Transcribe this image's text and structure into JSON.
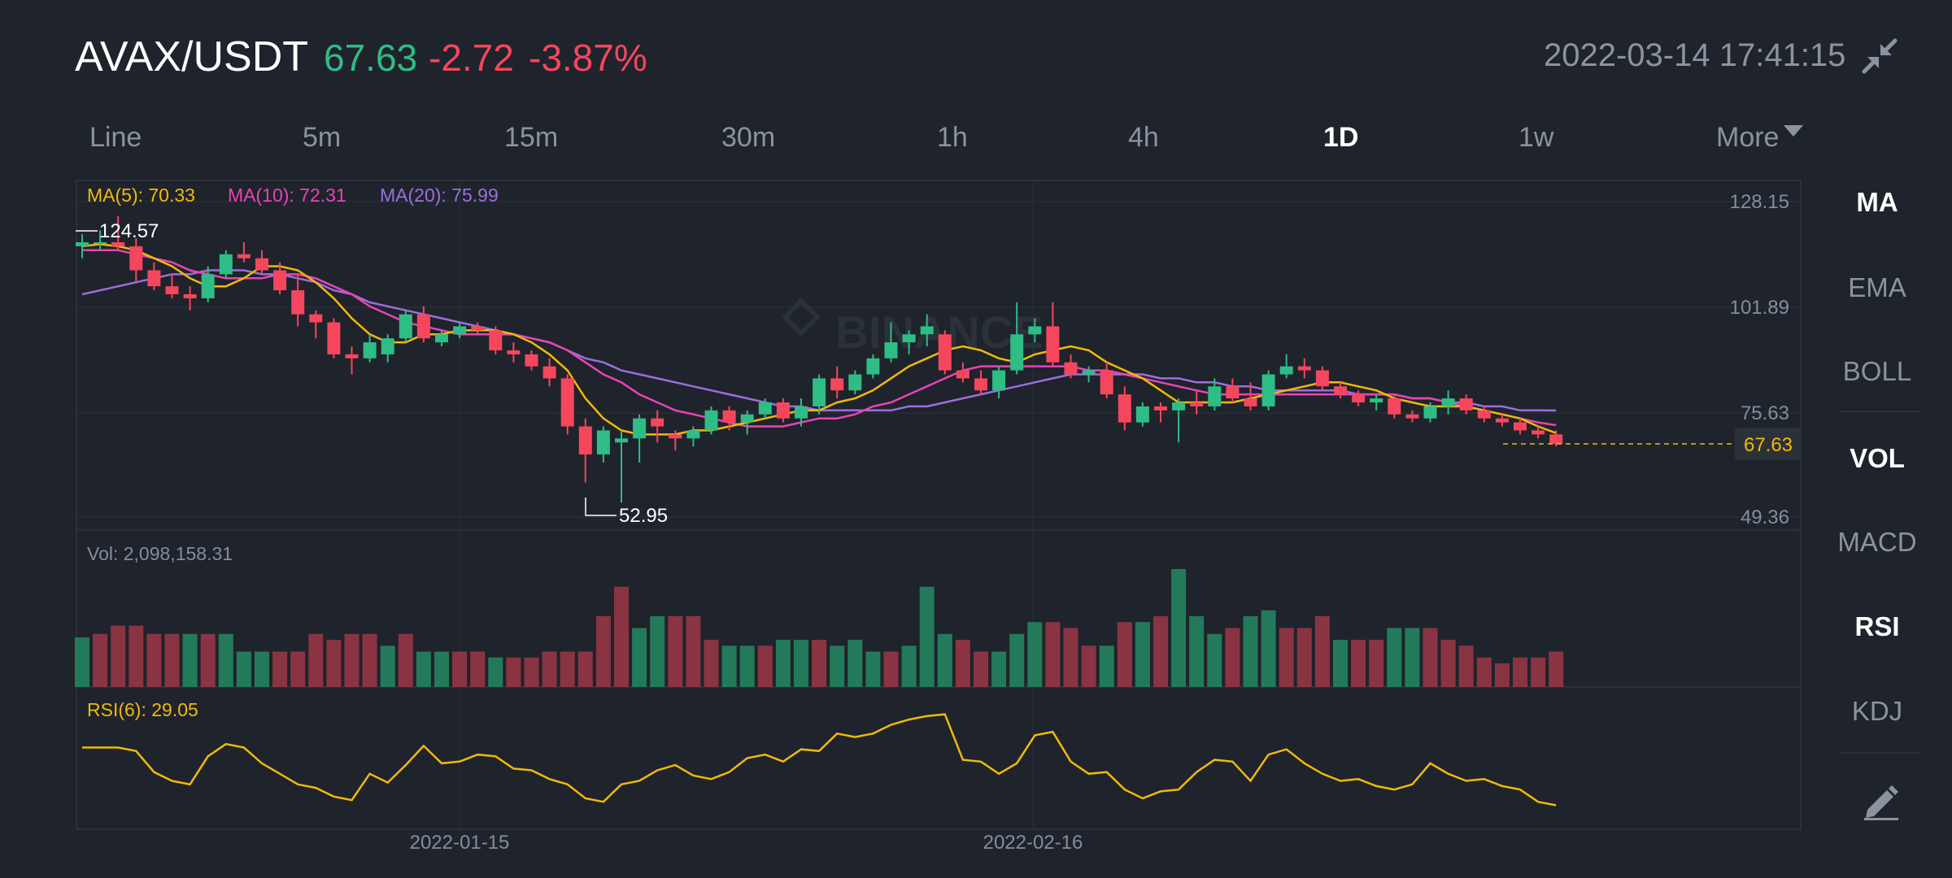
{
  "header": {
    "pair": "AVAX/USDT",
    "price": "67.63",
    "change": "-2.72",
    "change_pct": "-3.87%",
    "datetime": "2022-03-14 17:41:15",
    "collapse_icon": "collapse-arrows-icon"
  },
  "timeframes": [
    "Line",
    "5m",
    "15m",
    "30m",
    "1h",
    "4h",
    "1D",
    "1w",
    "More"
  ],
  "active_timeframe": "1D",
  "indicators": [
    "MA",
    "EMA",
    "BOLL",
    "VOL",
    "MACD",
    "RSI",
    "KDJ"
  ],
  "active_indicators": [
    "MA",
    "VOL",
    "RSI"
  ],
  "draw_tool_icon": "pencil-draw-icon",
  "watermark": "BINANCE",
  "colors": {
    "up": "#2ebd85",
    "down": "#f6465d",
    "ma5": "#f0b90b",
    "ma10": "#e844b5",
    "ma20": "#9c6ede",
    "rsi": "#f0b90b",
    "bg": "#1f232b",
    "grid": "#2b3139"
  },
  "chart_data": {
    "type": "candlestick",
    "interval": "1D",
    "legend": {
      "ma5": "MA(5): 70.33",
      "ma10": "MA(10): 72.31",
      "ma20": "MA(20): 75.99",
      "vol": "Vol: 2,098,158.31",
      "rsi": "RSI(6): 29.05"
    },
    "price_ticks": [
      "128.15",
      "101.89",
      "75.63",
      "49.36"
    ],
    "price_range": [
      49.36,
      128.15
    ],
    "last_price_label": "67.63",
    "high_marker": "124.57",
    "low_marker": "52.95",
    "x_tick_labels": [
      "2022-01-15",
      "2022-02-16"
    ],
    "candles": [
      {
        "o": 117,
        "h": 120,
        "l": 114,
        "c": 118
      },
      {
        "o": 118,
        "h": 121,
        "l": 116,
        "c": 118
      },
      {
        "o": 118,
        "h": 124.57,
        "l": 116,
        "c": 117
      },
      {
        "o": 117,
        "h": 119,
        "l": 108,
        "c": 111
      },
      {
        "o": 111,
        "h": 113,
        "l": 106,
        "c": 107
      },
      {
        "o": 107,
        "h": 110,
        "l": 104,
        "c": 105
      },
      {
        "o": 105,
        "h": 107,
        "l": 101,
        "c": 104
      },
      {
        "o": 104,
        "h": 112,
        "l": 103,
        "c": 110
      },
      {
        "o": 110,
        "h": 116,
        "l": 109,
        "c": 115
      },
      {
        "o": 115,
        "h": 118,
        "l": 113,
        "c": 114
      },
      {
        "o": 114,
        "h": 116,
        "l": 110,
        "c": 111
      },
      {
        "o": 111,
        "h": 113,
        "l": 105,
        "c": 106
      },
      {
        "o": 106,
        "h": 110,
        "l": 97,
        "c": 100
      },
      {
        "o": 100,
        "h": 101,
        "l": 94,
        "c": 98
      },
      {
        "o": 98,
        "h": 99,
        "l": 89,
        "c": 90
      },
      {
        "o": 90,
        "h": 92,
        "l": 85,
        "c": 89
      },
      {
        "o": 89,
        "h": 95,
        "l": 88,
        "c": 93
      },
      {
        "o": 90,
        "h": 95,
        "l": 88,
        "c": 94
      },
      {
        "o": 94,
        "h": 101,
        "l": 93,
        "c": 100
      },
      {
        "o": 100,
        "h": 102,
        "l": 93,
        "c": 94
      },
      {
        "o": 93,
        "h": 96,
        "l": 92,
        "c": 95
      },
      {
        "o": 95,
        "h": 98,
        "l": 94,
        "c": 97
      },
      {
        "o": 97,
        "h": 98,
        "l": 95,
        "c": 96
      },
      {
        "o": 96,
        "h": 97,
        "l": 90,
        "c": 91
      },
      {
        "o": 91,
        "h": 93,
        "l": 88,
        "c": 90
      },
      {
        "o": 90,
        "h": 91,
        "l": 86,
        "c": 87
      },
      {
        "o": 87,
        "h": 89,
        "l": 82,
        "c": 84
      },
      {
        "o": 84,
        "h": 85,
        "l": 70,
        "c": 72
      },
      {
        "o": 72,
        "h": 74,
        "l": 58,
        "c": 65
      },
      {
        "o": 65,
        "h": 72,
        "l": 63,
        "c": 71
      },
      {
        "o": 68,
        "h": 71,
        "l": 52.95,
        "c": 69
      },
      {
        "o": 69,
        "h": 75,
        "l": 63,
        "c": 74
      },
      {
        "o": 74,
        "h": 76,
        "l": 68,
        "c": 72
      },
      {
        "o": 70,
        "h": 71,
        "l": 66,
        "c": 69
      },
      {
        "o": 69,
        "h": 72,
        "l": 67,
        "c": 71
      },
      {
        "o": 71,
        "h": 77,
        "l": 70,
        "c": 76
      },
      {
        "o": 76,
        "h": 77,
        "l": 71,
        "c": 73
      },
      {
        "o": 73,
        "h": 76,
        "l": 70,
        "c": 75
      },
      {
        "o": 75,
        "h": 79,
        "l": 74,
        "c": 78
      },
      {
        "o": 78,
        "h": 79,
        "l": 73,
        "c": 74
      },
      {
        "o": 74,
        "h": 79,
        "l": 72,
        "c": 77
      },
      {
        "o": 77,
        "h": 85,
        "l": 75,
        "c": 84
      },
      {
        "o": 84,
        "h": 87,
        "l": 79,
        "c": 81
      },
      {
        "o": 81,
        "h": 86,
        "l": 80,
        "c": 85
      },
      {
        "o": 85,
        "h": 90,
        "l": 84,
        "c": 89
      },
      {
        "o": 89,
        "h": 98,
        "l": 88,
        "c": 93
      },
      {
        "o": 93,
        "h": 96,
        "l": 90,
        "c": 95
      },
      {
        "o": 95,
        "h": 100,
        "l": 92,
        "c": 97
      },
      {
        "o": 95,
        "h": 96,
        "l": 85,
        "c": 86
      },
      {
        "o": 86,
        "h": 88,
        "l": 83,
        "c": 84
      },
      {
        "o": 84,
        "h": 86,
        "l": 80,
        "c": 81
      },
      {
        "o": 81,
        "h": 87,
        "l": 79,
        "c": 86
      },
      {
        "o": 86,
        "h": 103,
        "l": 85,
        "c": 95
      },
      {
        "o": 95,
        "h": 99,
        "l": 93,
        "c": 97
      },
      {
        "o": 97,
        "h": 103,
        "l": 87,
        "c": 88
      },
      {
        "o": 88,
        "h": 90,
        "l": 84,
        "c": 85
      },
      {
        "o": 85,
        "h": 87,
        "l": 83,
        "c": 86
      },
      {
        "o": 86,
        "h": 88,
        "l": 79,
        "c": 80
      },
      {
        "o": 80,
        "h": 82,
        "l": 71,
        "c": 73
      },
      {
        "o": 73,
        "h": 78,
        "l": 72,
        "c": 77
      },
      {
        "o": 77,
        "h": 78,
        "l": 73,
        "c": 76
      },
      {
        "o": 76,
        "h": 79,
        "l": 68,
        "c": 78
      },
      {
        "o": 78,
        "h": 81,
        "l": 75,
        "c": 77
      },
      {
        "o": 77,
        "h": 84,
        "l": 76,
        "c": 82
      },
      {
        "o": 82,
        "h": 84,
        "l": 78,
        "c": 79
      },
      {
        "o": 79,
        "h": 83,
        "l": 76,
        "c": 77
      },
      {
        "o": 77,
        "h": 86,
        "l": 76,
        "c": 85
      },
      {
        "o": 85,
        "h": 90,
        "l": 84,
        "c": 87
      },
      {
        "o": 87,
        "h": 89,
        "l": 84,
        "c": 86
      },
      {
        "o": 86,
        "h": 87,
        "l": 81,
        "c": 82
      },
      {
        "o": 82,
        "h": 83,
        "l": 79,
        "c": 80
      },
      {
        "o": 80,
        "h": 81,
        "l": 77,
        "c": 78
      },
      {
        "o": 78,
        "h": 80,
        "l": 76,
        "c": 79
      },
      {
        "o": 79,
        "h": 80,
        "l": 74,
        "c": 75
      },
      {
        "o": 75,
        "h": 76,
        "l": 73,
        "c": 74
      },
      {
        "o": 74,
        "h": 78,
        "l": 73,
        "c": 77
      },
      {
        "o": 77,
        "h": 81,
        "l": 75,
        "c": 79
      },
      {
        "o": 79,
        "h": 80,
        "l": 75,
        "c": 76
      },
      {
        "o": 76,
        "h": 77,
        "l": 73,
        "c": 74
      },
      {
        "o": 74,
        "h": 75,
        "l": 72,
        "c": 73
      },
      {
        "o": 73,
        "h": 74,
        "l": 70,
        "c": 71
      },
      {
        "o": 71,
        "h": 72,
        "l": 69,
        "c": 70
      },
      {
        "o": 70,
        "h": 71,
        "l": 67,
        "c": 67.63
      }
    ],
    "ma5": [
      117,
      117.5,
      117,
      116,
      114,
      112,
      109,
      107,
      107,
      109,
      112,
      112,
      111,
      108,
      104,
      99,
      95,
      93,
      93,
      95,
      95,
      96,
      96,
      96,
      95,
      93,
      90,
      86,
      79,
      74,
      71,
      70,
      70,
      70,
      71,
      71,
      72,
      73,
      74,
      75,
      76,
      76,
      78,
      79,
      81,
      84,
      87,
      89,
      91,
      92,
      91,
      89,
      88,
      90,
      91,
      92,
      91,
      88,
      86,
      84,
      81,
      78,
      78,
      78,
      78,
      79,
      80,
      81,
      82,
      83,
      83,
      82,
      81,
      79,
      78,
      77,
      77,
      77,
      76,
      75,
      74,
      72,
      70.33
    ],
    "ma10": [
      116,
      116,
      116,
      115,
      114,
      113,
      111,
      110,
      109,
      109,
      109,
      110,
      110,
      109,
      107,
      105,
      102,
      100,
      98,
      97,
      96,
      95,
      95,
      95,
      95,
      94,
      93,
      91,
      88,
      85,
      83,
      80,
      78,
      76,
      75,
      74,
      73,
      72,
      72,
      72,
      73,
      74,
      74,
      75,
      77,
      78,
      80,
      82,
      84,
      86,
      87,
      87,
      87,
      87,
      87,
      87,
      86,
      86,
      85,
      84,
      83,
      82,
      81,
      80,
      80,
      80,
      80,
      80,
      80,
      80,
      80,
      80,
      80,
      80,
      79,
      79,
      78,
      77,
      76,
      75,
      74,
      73,
      72.31
    ],
    "ma20": [
      105,
      106,
      107,
      108,
      109,
      110,
      110,
      111,
      111,
      111,
      110,
      110,
      109,
      108,
      106,
      105,
      103,
      102,
      101,
      100,
      99,
      98,
      97,
      96,
      95,
      94,
      93,
      91,
      89,
      88,
      86,
      85,
      84,
      83,
      82,
      81,
      80,
      79,
      78,
      77,
      77,
      76,
      76,
      76,
      76,
      76,
      77,
      77,
      78,
      79,
      80,
      81,
      82,
      83,
      84,
      85,
      85,
      85,
      85,
      85,
      84,
      84,
      83,
      83,
      82,
      82,
      81,
      81,
      81,
      81,
      81,
      80,
      80,
      80,
      79,
      79,
      78,
      78,
      77,
      77,
      76,
      76,
      75.99
    ],
    "volume": [
      {
        "v": 0.42,
        "d": 0
      },
      {
        "v": 0.45,
        "d": 1
      },
      {
        "v": 0.52,
        "d": 1
      },
      {
        "v": 0.52,
        "d": 1
      },
      {
        "v": 0.45,
        "d": 1
      },
      {
        "v": 0.45,
        "d": 1
      },
      {
        "v": 0.45,
        "d": 0
      },
      {
        "v": 0.45,
        "d": 1
      },
      {
        "v": 0.45,
        "d": 0
      },
      {
        "v": 0.3,
        "d": 0
      },
      {
        "v": 0.3,
        "d": 0
      },
      {
        "v": 0.3,
        "d": 1
      },
      {
        "v": 0.3,
        "d": 1
      },
      {
        "v": 0.45,
        "d": 1
      },
      {
        "v": 0.4,
        "d": 1
      },
      {
        "v": 0.45,
        "d": 1
      },
      {
        "v": 0.45,
        "d": 1
      },
      {
        "v": 0.35,
        "d": 0
      },
      {
        "v": 0.45,
        "d": 1
      },
      {
        "v": 0.3,
        "d": 0
      },
      {
        "v": 0.3,
        "d": 0
      },
      {
        "v": 0.3,
        "d": 1
      },
      {
        "v": 0.3,
        "d": 1
      },
      {
        "v": 0.25,
        "d": 0
      },
      {
        "v": 0.25,
        "d": 1
      },
      {
        "v": 0.25,
        "d": 1
      },
      {
        "v": 0.3,
        "d": 1
      },
      {
        "v": 0.3,
        "d": 1
      },
      {
        "v": 0.3,
        "d": 1
      },
      {
        "v": 0.6,
        "d": 1
      },
      {
        "v": 0.85,
        "d": 1
      },
      {
        "v": 0.5,
        "d": 0
      },
      {
        "v": 0.6,
        "d": 0
      },
      {
        "v": 0.6,
        "d": 1
      },
      {
        "v": 0.6,
        "d": 1
      },
      {
        "v": 0.4,
        "d": 1
      },
      {
        "v": 0.35,
        "d": 0
      },
      {
        "v": 0.35,
        "d": 0
      },
      {
        "v": 0.35,
        "d": 1
      },
      {
        "v": 0.4,
        "d": 0
      },
      {
        "v": 0.4,
        "d": 0
      },
      {
        "v": 0.4,
        "d": 1
      },
      {
        "v": 0.35,
        "d": 0
      },
      {
        "v": 0.4,
        "d": 0
      },
      {
        "v": 0.3,
        "d": 0
      },
      {
        "v": 0.3,
        "d": 1
      },
      {
        "v": 0.35,
        "d": 0
      },
      {
        "v": 0.85,
        "d": 0
      },
      {
        "v": 0.45,
        "d": 0
      },
      {
        "v": 0.4,
        "d": 1
      },
      {
        "v": 0.3,
        "d": 1
      },
      {
        "v": 0.3,
        "d": 0
      },
      {
        "v": 0.45,
        "d": 0
      },
      {
        "v": 0.55,
        "d": 0
      },
      {
        "v": 0.55,
        "d": 1
      },
      {
        "v": 0.5,
        "d": 1
      },
      {
        "v": 0.35,
        "d": 1
      },
      {
        "v": 0.35,
        "d": 0
      },
      {
        "v": 0.55,
        "d": 1
      },
      {
        "v": 0.55,
        "d": 0
      },
      {
        "v": 0.6,
        "d": 1
      },
      {
        "v": 1.0,
        "d": 0
      },
      {
        "v": 0.6,
        "d": 0
      },
      {
        "v": 0.45,
        "d": 0
      },
      {
        "v": 0.5,
        "d": 1
      },
      {
        "v": 0.6,
        "d": 0
      },
      {
        "v": 0.65,
        "d": 0
      },
      {
        "v": 0.5,
        "d": 1
      },
      {
        "v": 0.5,
        "d": 1
      },
      {
        "v": 0.6,
        "d": 1
      },
      {
        "v": 0.4,
        "d": 0
      },
      {
        "v": 0.4,
        "d": 1
      },
      {
        "v": 0.4,
        "d": 1
      },
      {
        "v": 0.5,
        "d": 0
      },
      {
        "v": 0.5,
        "d": 0
      },
      {
        "v": 0.5,
        "d": 1
      },
      {
        "v": 0.4,
        "d": 1
      },
      {
        "v": 0.35,
        "d": 1
      },
      {
        "v": 0.25,
        "d": 1
      },
      {
        "v": 0.2,
        "d": 1
      },
      {
        "v": 0.25,
        "d": 1
      },
      {
        "v": 0.25,
        "d": 1
      },
      {
        "v": 0.3,
        "d": 1
      }
    ],
    "rsi": [
      62,
      62,
      62,
      60,
      48,
      43,
      41,
      57,
      64,
      62,
      53,
      47,
      41,
      39,
      34,
      32,
      47,
      42,
      52,
      63,
      53,
      54,
      58,
      57,
      50,
      49,
      44,
      41,
      33,
      31,
      41,
      43,
      49,
      52,
      46,
      44,
      48,
      56,
      58,
      54,
      61,
      60,
      70,
      68,
      70,
      75,
      78,
      80,
      81,
      55,
      54,
      47,
      53,
      69,
      71,
      54,
      47,
      48,
      38,
      33,
      37,
      38,
      48,
      55,
      54,
      43,
      58,
      61,
      53,
      47,
      43,
      44,
      40,
      38,
      41,
      53,
      47,
      43,
      44,
      40,
      38,
      31,
      29.05
    ]
  }
}
